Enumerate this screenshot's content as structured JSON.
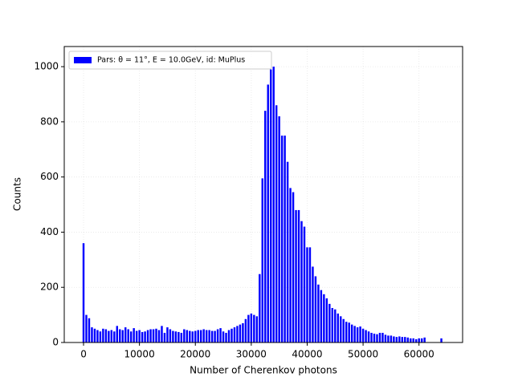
{
  "chart_data": {
    "type": "histogram",
    "xlabel": "Number of Cherenkov photons",
    "ylabel": "Counts",
    "series": [
      {
        "name": "Pars: θ = 11°, E = 10.0GeV, id: MuPlus",
        "color": "#0000ff",
        "bins": [
          -250,
          250,
          750,
          1250,
          1750,
          2250,
          2750,
          3250,
          3750,
          4250,
          4750,
          5250,
          5750,
          6250,
          6750,
          7250,
          7750,
          8250,
          8750,
          9250,
          9750,
          10250,
          10750,
          11250,
          11750,
          12250,
          12750,
          13250,
          13750,
          14250,
          14750,
          15250,
          15750,
          16250,
          16750,
          17250,
          17750,
          18250,
          18750,
          19250,
          19750,
          20250,
          20750,
          21250,
          21750,
          22250,
          22750,
          23250,
          23750,
          24250,
          24750,
          25250,
          25750,
          26250,
          26750,
          27250,
          27750,
          28250,
          28750,
          29250,
          29750,
          30250,
          30750,
          31250,
          31750,
          32250,
          32750,
          33250,
          33750,
          34250,
          34750,
          35250,
          35750,
          36250,
          36750,
          37250,
          37750,
          38250,
          38750,
          39250,
          39750,
          40250,
          40750,
          41250,
          41750,
          42250,
          42750,
          43250,
          43750,
          44250,
          44750,
          45250,
          45750,
          46250,
          46750,
          47250,
          47750,
          48250,
          48750,
          49250,
          49750,
          50250,
          50750,
          51250,
          51750,
          52250,
          52750,
          53250,
          53750,
          54250,
          54750,
          55250,
          55750,
          56250,
          56750,
          57250,
          57750,
          58250,
          58750,
          59250,
          59750,
          60250,
          60750,
          61250,
          61750,
          62250,
          62750,
          63250,
          63750,
          64250
        ],
        "values": [
          360,
          100,
          88,
          55,
          50,
          45,
          40,
          50,
          48,
          42,
          45,
          40,
          60,
          48,
          45,
          55,
          48,
          40,
          52,
          42,
          45,
          38,
          40,
          45,
          48,
          48,
          50,
          45,
          60,
          35,
          55,
          48,
          42,
          40,
          38,
          35,
          48,
          45,
          42,
          40,
          42,
          45,
          45,
          48,
          45,
          45,
          42,
          42,
          48,
          52,
          40,
          35,
          45,
          50,
          55,
          60,
          65,
          70,
          85,
          100,
          105,
          100,
          95,
          248,
          595,
          840,
          935,
          990,
          1000,
          860,
          820,
          750,
          750,
          655,
          560,
          545,
          480,
          480,
          440,
          420,
          345,
          345,
          275,
          240,
          210,
          190,
          175,
          160,
          140,
          125,
          120,
          105,
          95,
          85,
          75,
          72,
          65,
          60,
          55,
          58,
          50,
          45,
          40,
          35,
          32,
          30,
          35,
          35,
          28,
          25,
          25,
          22,
          20,
          22,
          20,
          20,
          18,
          15,
          15,
          12,
          15,
          15,
          18,
          0,
          0,
          0,
          0,
          0,
          15
        ]
      }
    ],
    "xlim": [
      -3450,
      67800
    ],
    "ylim": [
      0,
      1073
    ],
    "xticks": [
      0,
      10000,
      20000,
      30000,
      40000,
      50000,
      60000
    ],
    "yticks": [
      0,
      200,
      400,
      600,
      800,
      1000
    ],
    "grid": true,
    "legend": "upper left"
  }
}
